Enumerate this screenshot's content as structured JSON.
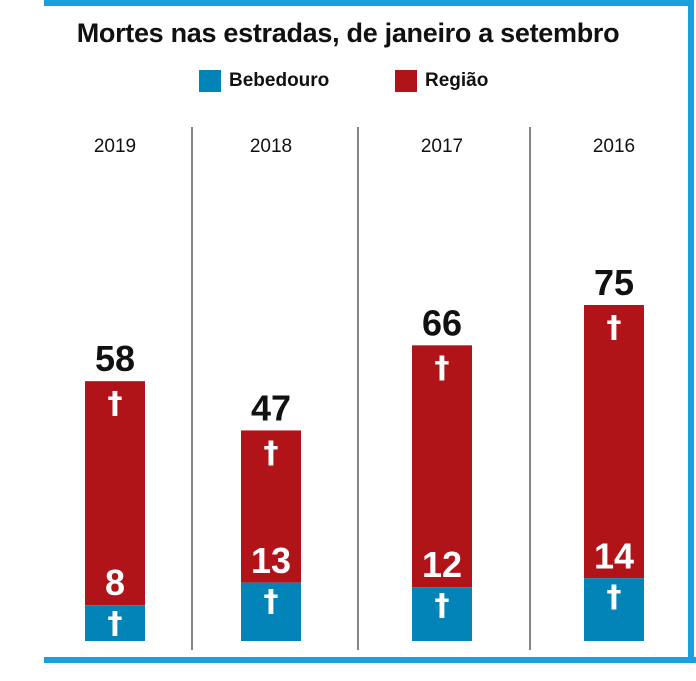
{
  "title": "Mortes nas estradas, de janeiro a setembro",
  "legend": {
    "bebedouro": "Bebedouro",
    "regiao": "Região"
  },
  "colors": {
    "bebedouro": "#0384b8",
    "regiao": "#b01419",
    "frame": "#1aa0dc"
  },
  "icon": "dagger-icon",
  "chart_data": {
    "type": "bar",
    "stacked": true,
    "title": "Mortes nas estradas, de janeiro a setembro",
    "categories": [
      "2019",
      "2018",
      "2017",
      "2016"
    ],
    "series": [
      {
        "name": "Bebedouro",
        "values": [
          8,
          13,
          12,
          14
        ]
      },
      {
        "name": "Região",
        "values": [
          50,
          34,
          54,
          61
        ]
      }
    ],
    "totals": [
      58,
      47,
      66,
      75
    ],
    "bebedouro_labels": [
      "8",
      "13",
      "12",
      "14"
    ],
    "total_labels": [
      "58",
      "47",
      "66",
      "75"
    ],
    "legend_position": "top"
  }
}
